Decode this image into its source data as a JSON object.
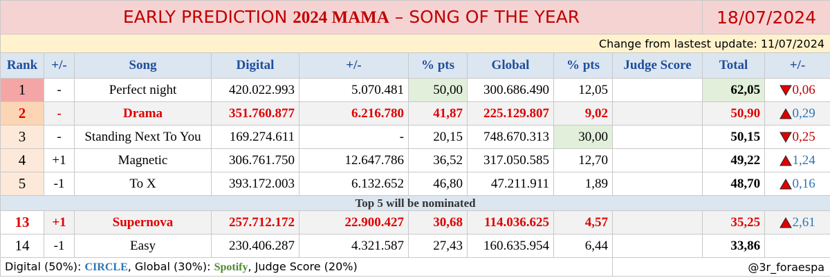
{
  "header": {
    "title": [
      "EARLY PREDICTION ",
      "2024 MAMA",
      " – SONG OF THE YEAR"
    ],
    "date": "18/07/2024",
    "update": "Change from lastest update: 11/07/2024"
  },
  "table": {
    "columns": [
      "Rank",
      "+/-",
      "Song",
      "Digital",
      "+/-",
      "% pts",
      "Global",
      "% pts",
      "Judge Score",
      "Total",
      "+/-"
    ],
    "top_rows": [
      [
        "1",
        "-",
        "Perfect night",
        "420.022.993",
        "5.070.481",
        "50,00",
        "300.686.490",
        "12,05",
        null,
        "62,05",
        "0,06"
      ],
      [
        "2",
        "-",
        "Drama",
        "351.760.877",
        "6.216.780",
        "41,87",
        "225.129.807",
        "9,02",
        null,
        "50,90",
        "0,29"
      ],
      [
        "3",
        "-",
        "Standing Next To You",
        "169.274.611",
        "-",
        "20,15",
        "748.670.313",
        "30,00",
        null,
        "50,15",
        "0,25"
      ],
      [
        "4",
        "+1",
        "Magnetic",
        "306.761.750",
        "12.647.786",
        "36,52",
        "317.050.585",
        "12,70",
        null,
        "49,22",
        "1,24"
      ],
      [
        "5",
        "-1",
        "To X",
        "393.172.003",
        "6.132.652",
        "46,80",
        "47.211.911",
        "1,89",
        null,
        "48,70",
        "0,16"
      ]
    ],
    "top_trends": [
      "down",
      "up",
      "down",
      "up",
      "up"
    ],
    "note": "Top 5 will be nominated",
    "other_rows": [
      [
        "13",
        "+1",
        "Supernova",
        "257.712.172",
        "22.900.427",
        "30,68",
        "114.036.625",
        "4,57",
        null,
        "35,25",
        "2,61"
      ],
      [
        "14",
        "-1",
        "Easy",
        "230.406.287",
        "4.321.587",
        "27,43",
        "160.635.954",
        "6,44",
        null,
        "33,86",
        null
      ]
    ],
    "other_trends": [
      "up",
      null
    ]
  },
  "footer": {
    "parts": [
      "Digital (50%): ",
      "CIRCLE",
      ", Global (30%): ",
      "Spotify",
      ", Judge Score (20%)"
    ],
    "credit": "@3r_foraespa"
  }
}
